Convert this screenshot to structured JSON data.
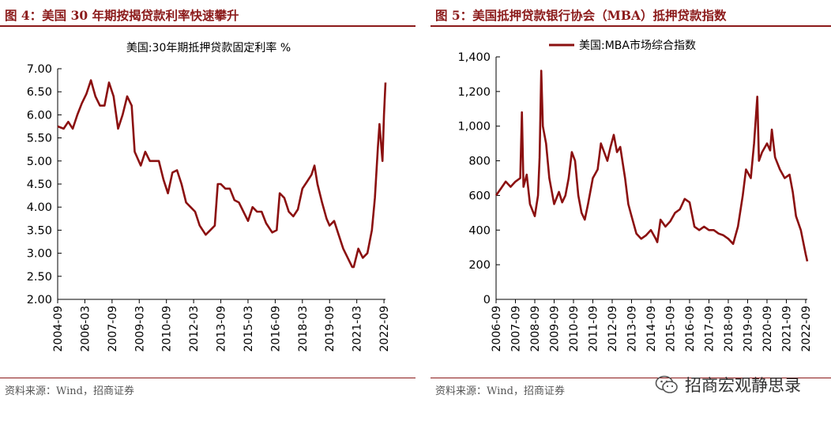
{
  "figures": [
    {
      "title": "图 4：美国 30 年期按揭贷款利率快速攀升",
      "source": "资料来源：Wind，招商证券"
    },
    {
      "title": "图 5：美国抵押贷款银行协会（MBA）抵押贷款指数",
      "source": "资料来源：Wind，招商证券"
    }
  ],
  "watermark": {
    "text": "招商宏观静思录",
    "icon": "wechat-icon"
  },
  "colors": {
    "accent": "#8b1a1a",
    "series": "#8b1010"
  },
  "chart_data": [
    {
      "type": "line",
      "title": "美国:30年期抵押贷款固定利率 %",
      "xlabel": "",
      "ylabel": "",
      "x_tick_labels": [
        "2004-09",
        "2006-03",
        "2007-09",
        "2009-03",
        "2010-09",
        "2012-03",
        "2013-09",
        "2015-03",
        "2016-09",
        "2018-03",
        "2019-09",
        "2021-03",
        "2022-09"
      ],
      "y_tick_labels": [
        "2.00",
        "2.50",
        "3.00",
        "3.50",
        "4.00",
        "4.50",
        "5.00",
        "5.50",
        "6.00",
        "6.50",
        "7.00"
      ],
      "xlim": [
        "2004-09",
        "2022-10"
      ],
      "ylim": [
        2.0,
        7.0
      ],
      "grid": false,
      "legend": "none",
      "series": [
        {
          "name": "",
          "x": [
            "2004-09",
            "2005-01",
            "2005-04",
            "2005-07",
            "2005-10",
            "2006-01",
            "2006-04",
            "2006-07",
            "2006-10",
            "2007-01",
            "2007-04",
            "2007-07",
            "2007-10",
            "2008-01",
            "2008-04",
            "2008-07",
            "2008-10",
            "2008-12",
            "2009-04",
            "2009-07",
            "2009-10",
            "2010-01",
            "2010-04",
            "2010-07",
            "2010-10",
            "2011-01",
            "2011-04",
            "2011-07",
            "2011-10",
            "2012-01",
            "2012-04",
            "2012-07",
            "2012-11",
            "2013-02",
            "2013-05",
            "2013-07",
            "2013-09",
            "2013-12",
            "2014-03",
            "2014-06",
            "2014-09",
            "2014-12",
            "2015-03",
            "2015-06",
            "2015-09",
            "2015-12",
            "2016-03",
            "2016-07",
            "2016-10",
            "2016-12",
            "2017-03",
            "2017-06",
            "2017-09",
            "2017-12",
            "2018-03",
            "2018-06",
            "2018-09",
            "2018-11",
            "2019-01",
            "2019-04",
            "2019-07",
            "2019-09",
            "2019-12",
            "2020-03",
            "2020-06",
            "2020-09",
            "2020-12",
            "2021-01",
            "2021-04",
            "2021-07",
            "2021-10",
            "2022-01",
            "2022-03",
            "2022-05",
            "2022-06",
            "2022-08",
            "2022-09",
            "2022-10"
          ],
          "y": [
            5.75,
            5.7,
            5.85,
            5.7,
            6.0,
            6.25,
            6.45,
            6.75,
            6.4,
            6.2,
            6.2,
            6.7,
            6.4,
            5.7,
            6.0,
            6.4,
            6.2,
            5.2,
            4.9,
            5.2,
            5.0,
            5.0,
            5.0,
            4.6,
            4.3,
            4.75,
            4.8,
            4.5,
            4.1,
            4.0,
            3.9,
            3.6,
            3.4,
            3.5,
            3.6,
            4.5,
            4.5,
            4.4,
            4.4,
            4.15,
            4.1,
            3.9,
            3.7,
            4.0,
            3.9,
            3.9,
            3.65,
            3.45,
            3.5,
            4.3,
            4.2,
            3.9,
            3.8,
            3.95,
            4.4,
            4.55,
            4.7,
            4.9,
            4.5,
            4.1,
            3.75,
            3.6,
            3.7,
            3.4,
            3.1,
            2.9,
            2.7,
            2.7,
            3.1,
            2.9,
            3.0,
            3.5,
            4.2,
            5.3,
            5.8,
            5.0,
            6.0,
            6.7
          ]
        }
      ]
    },
    {
      "type": "line",
      "title": "",
      "xlabel": "",
      "ylabel": "",
      "x_tick_labels": [
        "2006-09",
        "2007-09",
        "2008-09",
        "2009-09",
        "2010-09",
        "2011-09",
        "2012-09",
        "2013-09",
        "2014-09",
        "2015-09",
        "2016-09",
        "2017-09",
        "2018-09",
        "2019-09",
        "2020-09",
        "2021-09",
        "2022-09"
      ],
      "y_tick_labels": [
        "0",
        "200",
        "400",
        "600",
        "800",
        "1,000",
        "1,200",
        "1,400"
      ],
      "xlim": [
        "2006-09",
        "2022-10"
      ],
      "ylim": [
        0,
        1400
      ],
      "grid": false,
      "legend": "top-center",
      "series": [
        {
          "name": "美国:MBA市场综合指数",
          "x": [
            "2006-09",
            "2006-12",
            "2007-03",
            "2007-06",
            "2007-09",
            "2007-12",
            "2008-01",
            "2008-02",
            "2008-04",
            "2008-06",
            "2008-09",
            "2008-11",
            "2008-12",
            "2009-01",
            "2009-02",
            "2009-04",
            "2009-06",
            "2009-09",
            "2009-12",
            "2010-02",
            "2010-04",
            "2010-06",
            "2010-08",
            "2010-10",
            "2010-12",
            "2011-02",
            "2011-04",
            "2011-06",
            "2011-09",
            "2011-12",
            "2012-02",
            "2012-04",
            "2012-06",
            "2012-08",
            "2012-10",
            "2012-12",
            "2013-02",
            "2013-05",
            "2013-07",
            "2013-09",
            "2013-12",
            "2014-03",
            "2014-06",
            "2014-09",
            "2014-12",
            "2015-01",
            "2015-03",
            "2015-06",
            "2015-09",
            "2015-12",
            "2016-03",
            "2016-06",
            "2016-09",
            "2016-12",
            "2017-03",
            "2017-06",
            "2017-09",
            "2017-12",
            "2018-03",
            "2018-06",
            "2018-09",
            "2018-12",
            "2019-03",
            "2019-06",
            "2019-08",
            "2019-11",
            "2020-01",
            "2020-03",
            "2020-04",
            "2020-06",
            "2020-09",
            "2020-11",
            "2020-12",
            "2021-02",
            "2021-05",
            "2021-08",
            "2021-11",
            "2022-01",
            "2022-03",
            "2022-06",
            "2022-09",
            "2022-10"
          ],
          "y": [
            600,
            640,
            680,
            650,
            680,
            700,
            1080,
            650,
            720,
            550,
            480,
            600,
            820,
            1320,
            1000,
            900,
            700,
            550,
            620,
            560,
            600,
            700,
            850,
            800,
            600,
            500,
            460,
            550,
            700,
            750,
            900,
            850,
            800,
            880,
            950,
            850,
            880,
            700,
            550,
            480,
            380,
            350,
            370,
            400,
            350,
            330,
            460,
            420,
            450,
            500,
            520,
            580,
            560,
            420,
            400,
            420,
            400,
            400,
            380,
            370,
            350,
            320,
            420,
            600,
            750,
            700,
            900,
            1170,
            800,
            850,
            900,
            860,
            980,
            820,
            750,
            700,
            720,
            620,
            480,
            400,
            260,
            220
          ]
        }
      ]
    }
  ]
}
